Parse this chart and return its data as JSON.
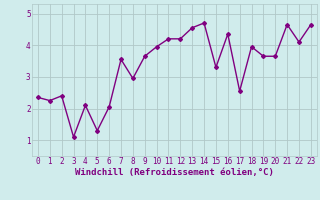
{
  "x_values": [
    0,
    1,
    2,
    3,
    4,
    5,
    6,
    7,
    8,
    9,
    10,
    11,
    12,
    13,
    14,
    15,
    16,
    17,
    18,
    19,
    20,
    21,
    22,
    23
  ],
  "y_values": [
    2.35,
    2.25,
    2.4,
    1.1,
    2.1,
    1.3,
    2.05,
    3.55,
    2.95,
    3.65,
    3.95,
    4.2,
    4.2,
    4.55,
    4.7,
    3.3,
    4.35,
    2.55,
    3.95,
    3.65,
    3.65,
    4.65,
    4.1,
    4.65
  ],
  "line_color": "#800080",
  "marker": "D",
  "marker_size": 2,
  "bg_color": "#d0ecec",
  "grid_color": "#b0c8c8",
  "xlabel": "Windchill (Refroidissement éolien,°C)",
  "ylabel": "",
  "xlim": [
    -0.5,
    23.5
  ],
  "ylim": [
    0.5,
    5.3
  ],
  "yticks": [
    1,
    2,
    3,
    4,
    5
  ],
  "xticks": [
    0,
    1,
    2,
    3,
    4,
    5,
    6,
    7,
    8,
    9,
    10,
    11,
    12,
    13,
    14,
    15,
    16,
    17,
    18,
    19,
    20,
    21,
    22,
    23
  ],
  "label_fontsize": 6.5,
  "tick_fontsize": 5.5,
  "line_width": 1.0
}
